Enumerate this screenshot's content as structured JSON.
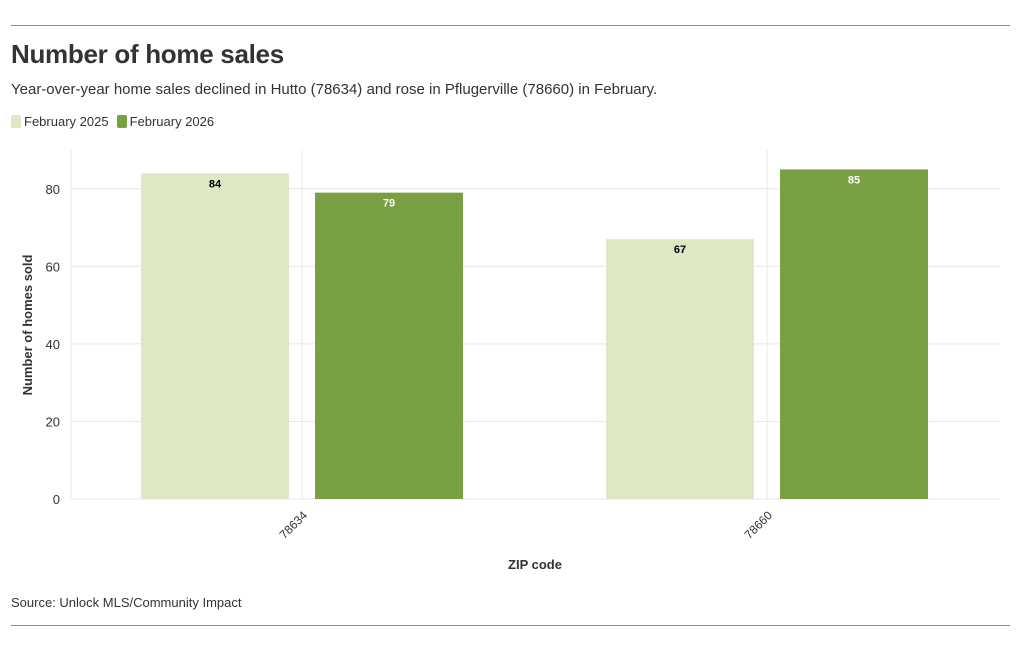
{
  "header": {
    "title": "Number of home sales",
    "subtitle": "Year-over-year home sales declined in Hutto (78634) and rose in Pflugerville (78660) in February."
  },
  "footer": {
    "source": "Source: Unlock MLS/Community Impact"
  },
  "colors": {
    "series_2025": "#dde8c4",
    "series_2026": "#79a143",
    "grid": "#e8e8e8",
    "axis_text": "#333333"
  },
  "chart_data": {
    "type": "bar",
    "title": "Number of home sales",
    "xlabel": "ZIP code",
    "ylabel": "Number of homes sold",
    "categories": [
      "78634",
      "78660"
    ],
    "series": [
      {
        "name": "February 2025",
        "values": [
          84,
          67
        ],
        "color": "#dde8c4",
        "label_color": "#000000"
      },
      {
        "name": "February 2026",
        "values": [
          79,
          85
        ],
        "color": "#79a143",
        "label_color": "#ffffff"
      }
    ],
    "ylim": [
      0,
      90
    ],
    "yticks": [
      0,
      20,
      40,
      60,
      80
    ],
    "grid": true,
    "legend": "top-left"
  }
}
